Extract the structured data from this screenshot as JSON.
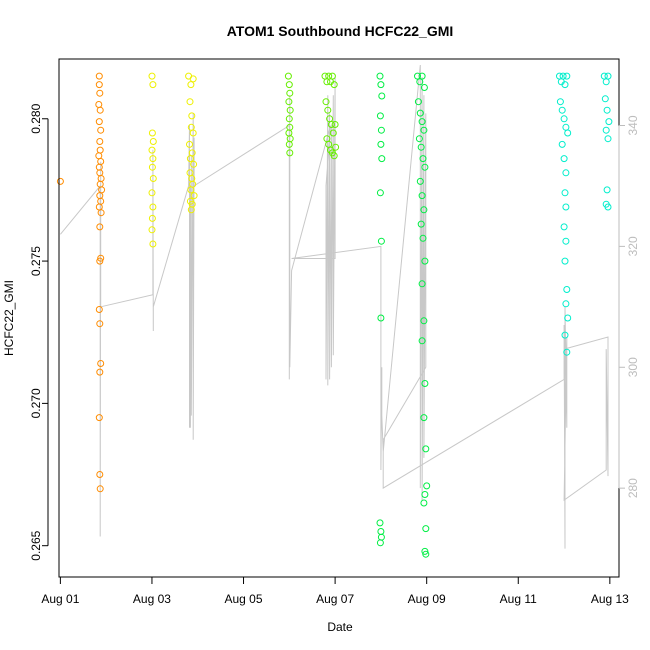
{
  "chart_data": {
    "type": "scatter",
    "title": "ATOM1 Southbound HCFC22_GMI",
    "xlabel": "Date",
    "ylabel": "HCFC22_GMI",
    "xlim": [
      0.97,
      13.2
    ],
    "ylim": [
      0.2639,
      0.2821
    ],
    "y_ticks": [
      0.265,
      0.27,
      0.275,
      0.28
    ],
    "y_tick_labels": [
      "0.265",
      "0.270",
      "0.275",
      "0.280"
    ],
    "x_ticks": [
      1,
      3,
      5,
      7,
      9,
      11,
      13
    ],
    "x_tick_labels": [
      "Aug 01",
      "Aug 03",
      "Aug 05",
      "Aug 07",
      "Aug 09",
      "Aug 11",
      "Aug 13"
    ],
    "secondary_axis": {
      "range": [
        265.3,
        351
      ],
      "ticks": [
        280,
        300,
        320,
        340
      ],
      "tick_labels": [
        "280",
        "300",
        "320",
        "340"
      ],
      "color": "#bdbdbd"
    },
    "point_color_scale": {
      "Aug 01": "#ff8c00",
      "Aug 03": "#e6f000",
      "Aug 06": "#66ee00",
      "Aug 08": "#00ee44",
      "Aug 12": "#00eecc"
    },
    "series": [
      {
        "name": "HCFC22_GMI",
        "color": "#ff8c00",
        "points": [
          [
            1.0,
            0.2778
          ],
          [
            1.85,
            0.2815
          ],
          [
            1.85,
            0.2812
          ],
          [
            1.86,
            0.2809
          ],
          [
            1.84,
            0.2805
          ],
          [
            1.87,
            0.2803
          ],
          [
            1.85,
            0.2799
          ],
          [
            1.88,
            0.2796
          ],
          [
            1.86,
            0.2792
          ],
          [
            1.87,
            0.2789
          ],
          [
            1.84,
            0.2787
          ],
          [
            1.88,
            0.2785
          ],
          [
            1.85,
            0.2783
          ],
          [
            1.86,
            0.2781
          ],
          [
            1.89,
            0.2779
          ],
          [
            1.87,
            0.2777
          ],
          [
            1.9,
            0.2775
          ],
          [
            1.86,
            0.2773
          ],
          [
            1.88,
            0.2771
          ],
          [
            1.85,
            0.2769
          ],
          [
            1.89,
            0.2767
          ],
          [
            1.86,
            0.2762
          ],
          [
            1.88,
            0.2751
          ],
          [
            1.86,
            0.275
          ],
          [
            1.85,
            0.2733
          ],
          [
            1.86,
            0.2728
          ],
          [
            1.88,
            0.2714
          ],
          [
            1.86,
            0.2711
          ],
          [
            1.85,
            0.2695
          ],
          [
            1.86,
            0.2675
          ],
          [
            1.87,
            0.267
          ]
        ]
      },
      {
        "name": "HCFC22_GMI",
        "color": "#eef000",
        "points": [
          [
            3.0,
            0.2815
          ],
          [
            3.02,
            0.2812
          ],
          [
            3.01,
            0.2795
          ],
          [
            3.03,
            0.2792
          ],
          [
            3.0,
            0.2789
          ],
          [
            3.02,
            0.2786
          ],
          [
            3.01,
            0.2783
          ],
          [
            3.03,
            0.2779
          ],
          [
            3.0,
            0.2774
          ],
          [
            3.02,
            0.2769
          ],
          [
            3.01,
            0.2765
          ],
          [
            3.0,
            0.2761
          ],
          [
            3.02,
            0.2756
          ],
          [
            3.8,
            0.2815
          ],
          [
            3.85,
            0.2812
          ],
          [
            3.9,
            0.2814
          ],
          [
            3.83,
            0.2806
          ],
          [
            3.87,
            0.2801
          ],
          [
            3.86,
            0.2797
          ],
          [
            3.9,
            0.2795
          ],
          [
            3.82,
            0.2791
          ],
          [
            3.88,
            0.2788
          ],
          [
            3.84,
            0.2786
          ],
          [
            3.91,
            0.2784
          ],
          [
            3.83,
            0.2781
          ],
          [
            3.87,
            0.2779
          ],
          [
            3.89,
            0.2777
          ],
          [
            3.85,
            0.2775
          ],
          [
            3.92,
            0.2773
          ],
          [
            3.84,
            0.2771
          ],
          [
            3.88,
            0.277
          ],
          [
            3.86,
            0.2768
          ]
        ]
      },
      {
        "name": "HCFC22_GMI",
        "color": "#66ee00",
        "points": [
          [
            5.98,
            0.2815
          ],
          [
            6.0,
            0.2812
          ],
          [
            6.01,
            0.2809
          ],
          [
            5.99,
            0.2806
          ],
          [
            6.02,
            0.2803
          ],
          [
            6.0,
            0.28
          ],
          [
            6.01,
            0.2797
          ],
          [
            5.99,
            0.2795
          ],
          [
            6.02,
            0.2793
          ],
          [
            6.0,
            0.2791
          ],
          [
            6.01,
            0.2788
          ],
          [
            6.78,
            0.2815
          ],
          [
            6.82,
            0.2813
          ],
          [
            6.86,
            0.2815
          ],
          [
            6.9,
            0.2813
          ],
          [
            6.94,
            0.2815
          ],
          [
            6.98,
            0.2812
          ],
          [
            6.8,
            0.2806
          ],
          [
            6.84,
            0.2803
          ],
          [
            6.88,
            0.28
          ],
          [
            6.92,
            0.2798
          ],
          [
            6.96,
            0.2795
          ],
          [
            6.82,
            0.2793
          ],
          [
            6.86,
            0.2791
          ],
          [
            6.9,
            0.2789
          ],
          [
            6.94,
            0.2788
          ],
          [
            6.98,
            0.2787
          ],
          [
            7.0,
            0.2798
          ],
          [
            7.01,
            0.279
          ]
        ]
      },
      {
        "name": "HCFC22_GMI",
        "color": "#00ee44",
        "points": [
          [
            7.98,
            0.2815
          ],
          [
            8.0,
            0.2812
          ],
          [
            8.02,
            0.2808
          ],
          [
            7.99,
            0.2801
          ],
          [
            8.01,
            0.2796
          ],
          [
            8.0,
            0.2791
          ],
          [
            8.02,
            0.2786
          ],
          [
            7.99,
            0.2774
          ],
          [
            8.01,
            0.2757
          ],
          [
            8.0,
            0.273
          ],
          [
            7.98,
            0.2658
          ],
          [
            8.0,
            0.2655
          ],
          [
            8.01,
            0.2653
          ],
          [
            7.99,
            0.2651
          ],
          [
            8.8,
            0.2815
          ],
          [
            8.85,
            0.2813
          ],
          [
            8.9,
            0.2815
          ],
          [
            8.95,
            0.2811
          ],
          [
            8.82,
            0.2806
          ],
          [
            8.86,
            0.2802
          ],
          [
            8.9,
            0.2799
          ],
          [
            8.94,
            0.2796
          ],
          [
            8.84,
            0.2793
          ],
          [
            8.88,
            0.279
          ],
          [
            8.92,
            0.2786
          ],
          [
            8.96,
            0.2783
          ],
          [
            8.86,
            0.2778
          ],
          [
            8.9,
            0.2773
          ],
          [
            8.94,
            0.2768
          ],
          [
            8.88,
            0.2763
          ],
          [
            8.92,
            0.2758
          ],
          [
            8.96,
            0.275
          ],
          [
            8.9,
            0.2742
          ],
          [
            8.94,
            0.2729
          ],
          [
            8.9,
            0.2722
          ],
          [
            8.96,
            0.2707
          ],
          [
            8.94,
            0.2695
          ],
          [
            9.0,
            0.2671
          ],
          [
            8.98,
            0.2684
          ],
          [
            8.96,
            0.2668
          ],
          [
            8.94,
            0.2665
          ],
          [
            8.98,
            0.2656
          ],
          [
            8.96,
            0.2648
          ],
          [
            8.98,
            0.2647
          ]
        ]
      },
      {
        "name": "HCFC22_GMI",
        "color": "#00eecc",
        "points": [
          [
            11.9,
            0.2815
          ],
          [
            11.94,
            0.2813
          ],
          [
            11.98,
            0.2815
          ],
          [
            12.02,
            0.2812
          ],
          [
            12.06,
            0.2815
          ],
          [
            11.92,
            0.2806
          ],
          [
            11.96,
            0.2803
          ],
          [
            12.0,
            0.28
          ],
          [
            12.04,
            0.2797
          ],
          [
            12.08,
            0.2795
          ],
          [
            11.96,
            0.2791
          ],
          [
            12.0,
            0.2786
          ],
          [
            12.04,
            0.2781
          ],
          [
            12.02,
            0.2774
          ],
          [
            12.04,
            0.2769
          ],
          [
            12.0,
            0.2762
          ],
          [
            12.04,
            0.2757
          ],
          [
            12.02,
            0.275
          ],
          [
            12.06,
            0.274
          ],
          [
            12.04,
            0.2735
          ],
          [
            12.08,
            0.273
          ],
          [
            12.02,
            0.2724
          ],
          [
            12.06,
            0.2718
          ],
          [
            12.88,
            0.2815
          ],
          [
            12.92,
            0.2813
          ],
          [
            12.96,
            0.2815
          ],
          [
            12.9,
            0.2807
          ],
          [
            12.94,
            0.2803
          ],
          [
            12.98,
            0.2799
          ],
          [
            12.92,
            0.2796
          ],
          [
            12.96,
            0.2793
          ],
          [
            12.94,
            0.2775
          ],
          [
            12.92,
            0.277
          ],
          [
            12.96,
            0.2769
          ]
        ]
      }
    ],
    "altitude_trace": {
      "name": "altitude (secondary axis)",
      "color": "#c8c8c8",
      "x": [
        1.0,
        1.87,
        1.87,
        1.88,
        1.88,
        3.02,
        3.02,
        3.03,
        3.03,
        3.8,
        3.82,
        3.82,
        3.84,
        3.84,
        3.86,
        3.86,
        3.9,
        3.9,
        3.92,
        3.92,
        6.0,
        6.0,
        6.01,
        6.01,
        6.05,
        6.9,
        6.8,
        6.8,
        6.84,
        6.84,
        6.88,
        6.88,
        6.92,
        6.92,
        6.96,
        6.96,
        7.0,
        7.0,
        6.05,
        6.05,
        8.0,
        8.0,
        8.02,
        8.02,
        8.05,
        8.86,
        8.86,
        8.9,
        8.9,
        8.94,
        8.94,
        8.98,
        8.98,
        8.05,
        8.05,
        12.0,
        12.0,
        12.02,
        12.02,
        12.06,
        12.06,
        12.0,
        12.92,
        12.92,
        12.96,
        12.96,
        12.0
      ],
      "y": [
        322,
        330,
        272,
        334,
        310,
        312,
        336,
        306,
        310,
        330,
        340,
        290,
        330,
        290,
        335,
        292,
        342,
        288,
        338,
        330,
        340,
        298,
        345,
        300,
        316,
        340,
        330,
        298,
        345,
        297,
        342,
        298,
        340,
        300,
        345,
        302,
        348,
        318,
        318,
        318,
        320,
        283,
        300,
        292,
        286,
        350,
        280,
        348,
        278,
        345,
        285,
        342,
        300,
        288,
        280,
        298,
        307,
        270,
        310,
        290,
        305,
        278,
        283,
        303,
        282,
        305,
        303
      ]
    }
  }
}
